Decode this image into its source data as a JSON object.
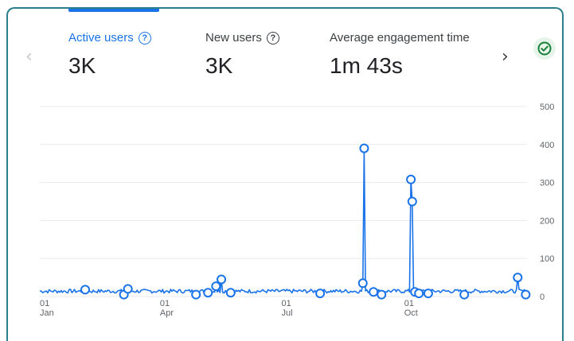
{
  "card": {
    "metrics": [
      {
        "label": "Active users",
        "value": "3K",
        "selected": true
      },
      {
        "label": "New users",
        "value": "3K",
        "selected": false
      },
      {
        "label": "Average engagement time",
        "value": "1m 43s",
        "selected": false
      }
    ],
    "help_icon": "?",
    "prev_icon": "chevron-left-icon",
    "next_icon": "chevron-right-icon",
    "status_icon": "check-circle-icon"
  },
  "colors": {
    "accent": "#1a73e8",
    "line": "#1a73e8",
    "grid": "#e8eaed",
    "badge_green": "#188038",
    "badge_bg": "#e6f4ea",
    "card_border": "#2d7e8d"
  },
  "chart_data": {
    "type": "line",
    "y_ticks": [
      "500",
      "400",
      "300",
      "200",
      "100",
      "0"
    ],
    "ylim": [
      0,
      500
    ],
    "x_ticks": [
      {
        "day": "01",
        "month": "Jan",
        "x": 0
      },
      {
        "day": "01",
        "month": "Apr",
        "x": 90
      },
      {
        "day": "01",
        "month": "Jul",
        "x": 181
      },
      {
        "day": "01",
        "month": "Oct",
        "x": 273
      }
    ],
    "xlim": [
      0,
      365
    ],
    "grid": true,
    "series": [
      {
        "baseline": 14,
        "points": [
          {
            "x": 34,
            "y": 18
          },
          {
            "x": 63,
            "y": 5
          },
          {
            "x": 66,
            "y": 20
          },
          {
            "x": 117,
            "y": 5
          },
          {
            "x": 126,
            "y": 10
          },
          {
            "x": 132,
            "y": 27
          },
          {
            "x": 136,
            "y": 45
          },
          {
            "x": 143,
            "y": 10
          },
          {
            "x": 210,
            "y": 8
          },
          {
            "x": 242,
            "y": 35
          },
          {
            "x": 243,
            "y": 390
          },
          {
            "x": 250,
            "y": 12
          },
          {
            "x": 256,
            "y": 5
          },
          {
            "x": 278,
            "y": 308
          },
          {
            "x": 279,
            "y": 250
          },
          {
            "x": 281,
            "y": 12
          },
          {
            "x": 284,
            "y": 8
          },
          {
            "x": 291,
            "y": 8
          },
          {
            "x": 318,
            "y": 5
          },
          {
            "x": 358,
            "y": 50
          },
          {
            "x": 364,
            "y": 5
          }
        ]
      }
    ]
  }
}
